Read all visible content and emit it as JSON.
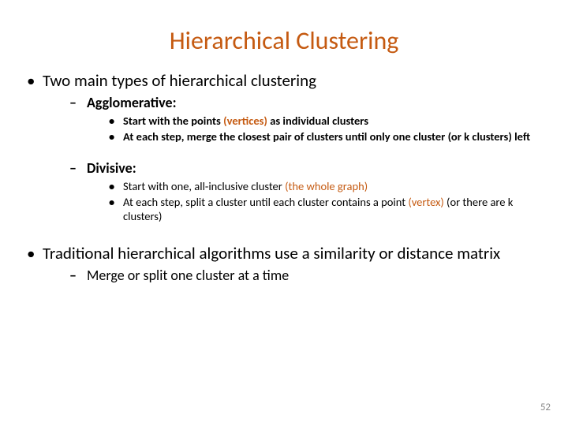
{
  "colors": {
    "title_color": "#c55a11",
    "accent_color": "#c55a11"
  },
  "title": "Hierarchical Clustering",
  "bullets": {
    "b1": "Two main types of hierarchical clustering",
    "b1a_label": "Agglomerative:",
    "b1a_1_pre": "Start with the points ",
    "b1a_1_accent": "(vertices)",
    "b1a_1_post": "  as individual clusters",
    "b1a_2": "At each step, merge the closest pair of clusters until only one cluster (or k clusters) left",
    "b1b_label": "Divisive:",
    "b1b_1_pre": "Start with one, all-inclusive cluster  ",
    "b1b_1_accent": "(the whole graph)",
    "b1b_2_pre": "At each step, split a cluster until each cluster contains a point ",
    "b1b_2_accent": "(vertex)",
    "b1b_2_post": " (or there are k clusters)",
    "b2": "Traditional hierarchical algorithms use a similarity or distance matrix",
    "b2a": "Merge or split one cluster at a time"
  },
  "page_number": "52"
}
